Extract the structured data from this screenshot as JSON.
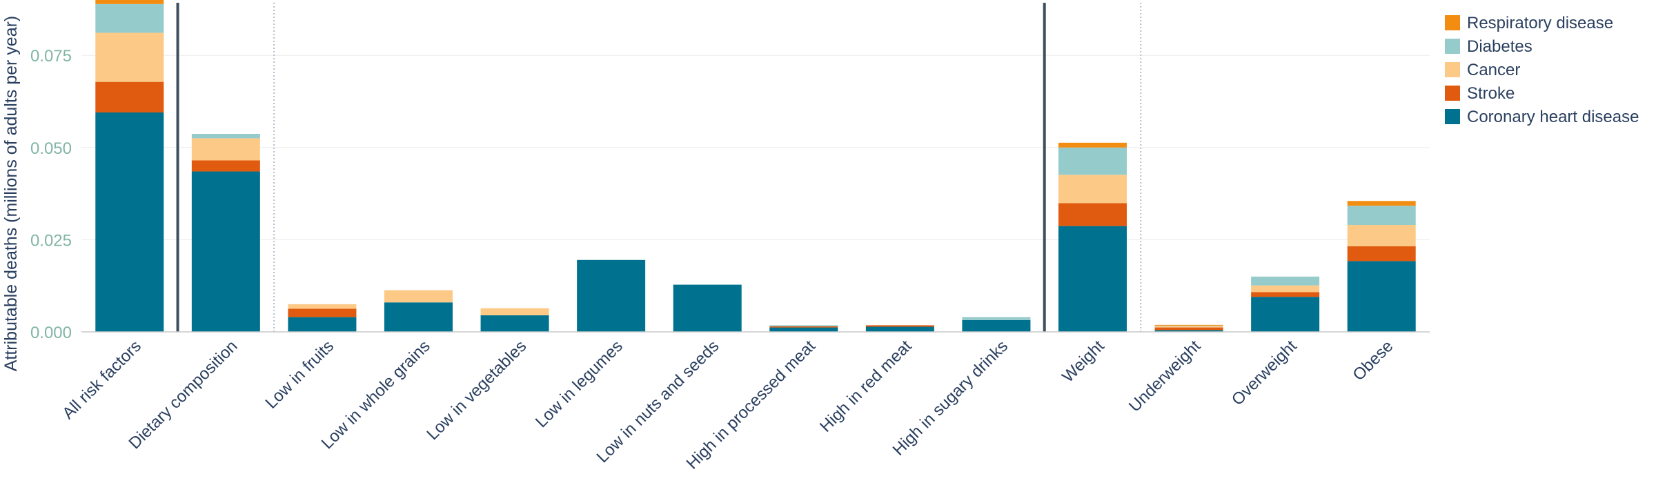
{
  "chart_data": {
    "type": "bar",
    "stacked": true,
    "ylabel": "Attributable deaths (millions of adults per year)",
    "xlabel": "",
    "ylim": [
      0,
      0.09
    ],
    "yticks": [
      0,
      0.025,
      0.05,
      0.075
    ],
    "ytick_labels": [
      "0.000",
      "0.025",
      "0.050",
      "0.075"
    ],
    "categories": [
      "All risk factors",
      "Dietary composition",
      "Low in fruits",
      "Low in whole grains",
      "Low in vegetables",
      "Low in legumes",
      "Low in nuts and seeds",
      "High in processed meat",
      "High in red meat",
      "High in sugary drinks",
      "Weight",
      "Underweight",
      "Overweight",
      "Obese"
    ],
    "series": [
      {
        "name": "Coronary heart disease",
        "color": "#00718f",
        "values": [
          0.0595,
          0.0435,
          0.004,
          0.008,
          0.0045,
          0.0195,
          0.0128,
          0.0012,
          0.0014,
          0.0032,
          0.0287,
          0.0005,
          0.0095,
          0.0192
        ]
      },
      {
        "name": "Stroke",
        "color": "#e05a0f",
        "values": [
          0.0083,
          0.003,
          0.0023,
          0.0,
          0.0,
          0.0,
          0.0,
          0.0003,
          0.0004,
          0.0,
          0.0062,
          0.0007,
          0.0013,
          0.004
        ]
      },
      {
        "name": "Cancer",
        "color": "#fdc987",
        "values": [
          0.0133,
          0.006,
          0.0012,
          0.0033,
          0.0019,
          0.0,
          0.0,
          0.0,
          0.0,
          0.0,
          0.0077,
          0.0004,
          0.0018,
          0.0058
        ]
      },
      {
        "name": "Diabetes",
        "color": "#95cbcb",
        "values": [
          0.0078,
          0.0012,
          0.0,
          0.0,
          0.0,
          0.0,
          0.0,
          0.0003,
          0.0,
          0.0008,
          0.0074,
          0.0001,
          0.0024,
          0.0052
        ]
      },
      {
        "name": "Respiratory disease",
        "color": "#f38d12",
        "values": [
          0.0016,
          0.0,
          0.0,
          0.0,
          0.0,
          0.0,
          0.0,
          0.0,
          0.0,
          0.0,
          0.0013,
          0.0002,
          0.0,
          0.0013
        ]
      }
    ],
    "group_separators": [
      {
        "after_category": 0,
        "style": "solid"
      },
      {
        "after_category": 1,
        "style": "dotted"
      },
      {
        "after_category": 9,
        "style": "solid"
      },
      {
        "after_category": 10,
        "style": "dotted"
      }
    ],
    "legend_order": [
      "Respiratory disease",
      "Diabetes",
      "Cancer",
      "Stroke",
      "Coronary heart disease"
    ],
    "legend_position": "top-right",
    "grid": true
  }
}
